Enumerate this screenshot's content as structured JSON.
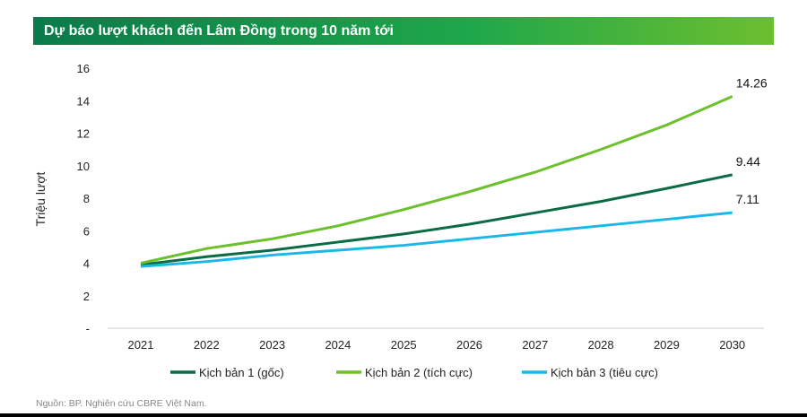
{
  "chart_data": {
    "type": "line",
    "title": "Dự báo lượt khách đến Lâm Đồng trong 10 năm tới",
    "ylabel": "Triệu lượt",
    "xlabel": "",
    "ylim": [
      0,
      16
    ],
    "yticks": [
      "-",
      "2",
      "4",
      "6",
      "8",
      "10",
      "12",
      "14",
      "16"
    ],
    "categories": [
      "2021",
      "2022",
      "2023",
      "2024",
      "2025",
      "2026",
      "2027",
      "2028",
      "2029",
      "2030"
    ],
    "grid": false,
    "legend": "bottom",
    "series": [
      {
        "name": "Kịch bản 1 (gốc)",
        "color": "#0b6b45",
        "values": [
          3.9,
          4.4,
          4.8,
          5.3,
          5.8,
          6.4,
          7.1,
          7.8,
          8.6,
          9.44
        ],
        "end_label": "9.44"
      },
      {
        "name": "Kịch bản 2 (tích cực)",
        "color": "#6cc02c",
        "values": [
          4.0,
          4.9,
          5.5,
          6.3,
          7.3,
          8.4,
          9.6,
          11.0,
          12.5,
          14.26
        ],
        "end_label": "14.26"
      },
      {
        "name": "Kịch bản 3 (tiêu cực)",
        "color": "#1ab8e8",
        "values": [
          3.8,
          4.1,
          4.5,
          4.8,
          5.1,
          5.5,
          5.9,
          6.3,
          6.7,
          7.11
        ],
        "end_label": "7.11"
      }
    ]
  },
  "source": "Nguồn: BP. Nghiên cứu CBRE Việt Nam."
}
